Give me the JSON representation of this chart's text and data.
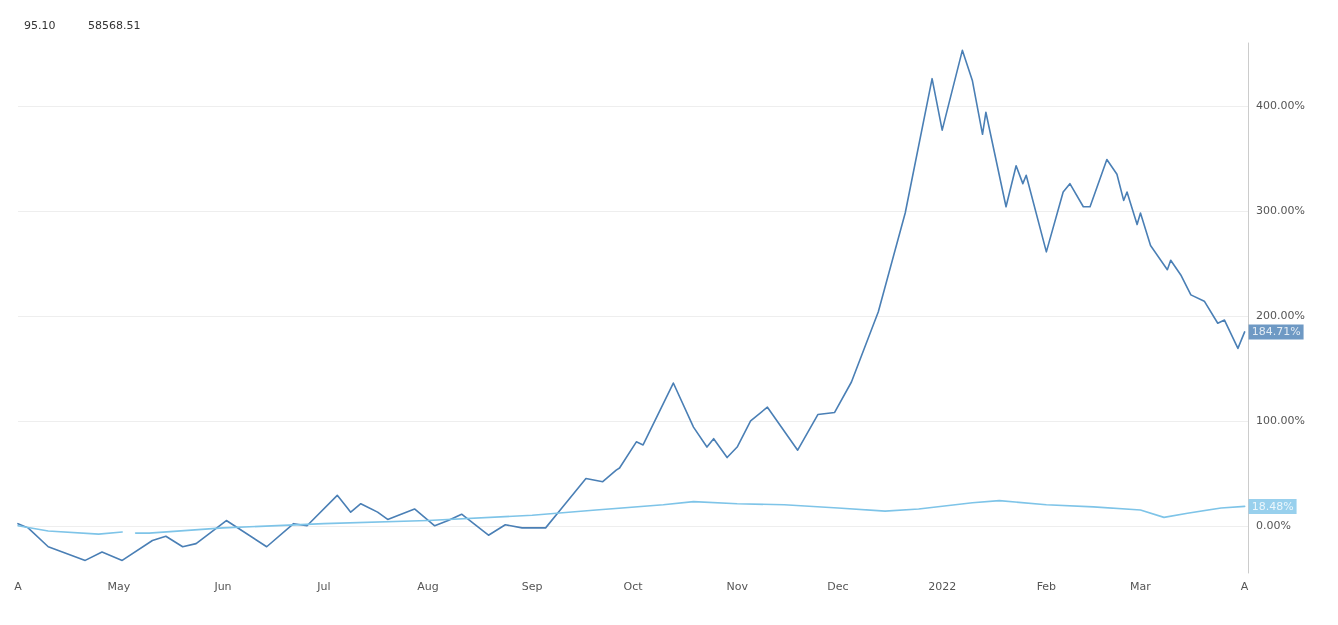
{
  "chart_data": {
    "type": "line",
    "xlim": [
      "2021-04-01",
      "2022-04-02"
    ],
    "xticks": [
      {
        "value": "2021-04-01",
        "label": "A"
      },
      {
        "value": "2021-05-01",
        "label": "May"
      },
      {
        "value": "2021-06-01",
        "label": "Jun"
      },
      {
        "value": "2021-07-01",
        "label": "Jul"
      },
      {
        "value": "2021-08-01",
        "label": "Aug"
      },
      {
        "value": "2021-09-01",
        "label": "Sep"
      },
      {
        "value": "2021-10-01",
        "label": "Oct"
      },
      {
        "value": "2021-11-01",
        "label": "Nov"
      },
      {
        "value": "2021-12-01",
        "label": "Dec"
      },
      {
        "value": "2022-01-01",
        "label": "2022"
      },
      {
        "value": "2022-02-01",
        "label": "Feb"
      },
      {
        "value": "2022-03-01",
        "label": "Mar"
      },
      {
        "value": "2022-04-01",
        "label": "A"
      }
    ],
    "ylim": [
      -45,
      460
    ],
    "yticks": [
      {
        "value": 0,
        "label": "0.00%"
      },
      {
        "value": 100,
        "label": "100.00%"
      },
      {
        "value": 200,
        "label": "200.00%"
      },
      {
        "value": 300,
        "label": "300.00%"
      },
      {
        "value": 400,
        "label": "400.00%"
      }
    ],
    "grid": "y",
    "marker": "none",
    "line_style": "solid",
    "series": [
      {
        "color": "#4a7fb5",
        "x": [
          "2021-04-01",
          "2021-04-04",
          "2021-04-10",
          "2021-04-21",
          "2021-04-26",
          "2021-05-02",
          "2021-05-11",
          "2021-05-15",
          "2021-05-20",
          "2021-05-24",
          "2021-06-02",
          "2021-06-14",
          "2021-06-22",
          "2021-06-26",
          "2021-07-05",
          "2021-07-09",
          "2021-07-12",
          "2021-07-17",
          "2021-07-20",
          "2021-07-28",
          "2021-08-03",
          "2021-08-07",
          "2021-08-11",
          "2021-08-19",
          "2021-08-24",
          "2021-08-29",
          "2021-09-05",
          "2021-09-17",
          "2021-09-22",
          "2021-09-26",
          "2021-09-27",
          "2021-10-02",
          "2021-10-04",
          "2021-10-13",
          "2021-10-19",
          "2021-10-23",
          "2021-10-25",
          "2021-10-29",
          "2021-11-01",
          "2021-11-05",
          "2021-11-10",
          "2021-11-19",
          "2021-11-25",
          "2021-11-30",
          "2021-12-05",
          "2021-12-13",
          "2021-12-21",
          "2021-12-29",
          "2022-01-01",
          "2022-01-07",
          "2022-01-10",
          "2022-01-13",
          "2022-01-14",
          "2022-01-20",
          "2022-01-23",
          "2022-01-25",
          "2022-01-26",
          "2022-02-01",
          "2022-02-06",
          "2022-02-08",
          "2022-02-12",
          "2022-02-14",
          "2022-02-19",
          "2022-02-22",
          "2022-02-24",
          "2022-02-25",
          "2022-02-28",
          "2022-03-01",
          "2022-03-04",
          "2022-03-09",
          "2022-03-10",
          "2022-03-13",
          "2022-03-16",
          "2022-03-20",
          "2022-03-24",
          "2022-03-26",
          "2022-03-30",
          "2022-04-01"
        ],
        "values": [
          2,
          -2,
          -20,
          -33,
          -25,
          -33,
          -14,
          -10,
          -20,
          -17,
          5,
          -20,
          2,
          0,
          29,
          13,
          21,
          13,
          6,
          16,
          0,
          5,
          11,
          -9,
          1,
          -2,
          -2,
          45,
          42,
          53,
          55,
          80,
          77,
          136,
          94,
          75,
          83,
          65,
          75,
          100,
          113,
          72,
          106,
          108,
          137,
          204,
          298,
          426,
          377,
          453,
          424,
          373,
          394,
          304,
          343,
          326,
          334,
          261,
          318,
          326,
          304,
          304,
          349,
          335,
          310,
          318,
          287,
          298,
          267,
          244,
          253,
          239,
          220,
          214,
          193,
          196,
          169,
          184.71
        ]
      },
      {
        "color": "#7ec4e8",
        "x": [
          "2021-04-01",
          "2021-04-10",
          "2021-04-25",
          "2021-05-02",
          "2021-05-04",
          "2021-05-06",
          "2021-05-10",
          "2021-06-01",
          "2021-07-01",
          "2021-08-01",
          "2021-09-01",
          "2021-09-20",
          "2021-10-10",
          "2021-10-19",
          "2021-11-01",
          "2021-11-15",
          "2021-12-01",
          "2021-12-15",
          "2021-12-25",
          "2022-01-10",
          "2022-01-18",
          "2022-02-01",
          "2022-02-15",
          "2022-03-01",
          "2022-03-08",
          "2022-03-15",
          "2022-03-25",
          "2022-04-01"
        ],
        "values": [
          0,
          -5,
          -8,
          -6,
          null,
          -7,
          -7,
          -2,
          2,
          5,
          10,
          15,
          20,
          23,
          21,
          20,
          17,
          14,
          16,
          22,
          24,
          20,
          18,
          15,
          8,
          12,
          17,
          18.48
        ]
      }
    ],
    "annotations": [
      "95.10",
      "58568.51",
      {
        "text": "184.71%",
        "x": "2022-04-01",
        "y": 184.71
      },
      {
        "text": "18.48%",
        "x": "2022-04-01",
        "y": 18.48
      }
    ]
  }
}
